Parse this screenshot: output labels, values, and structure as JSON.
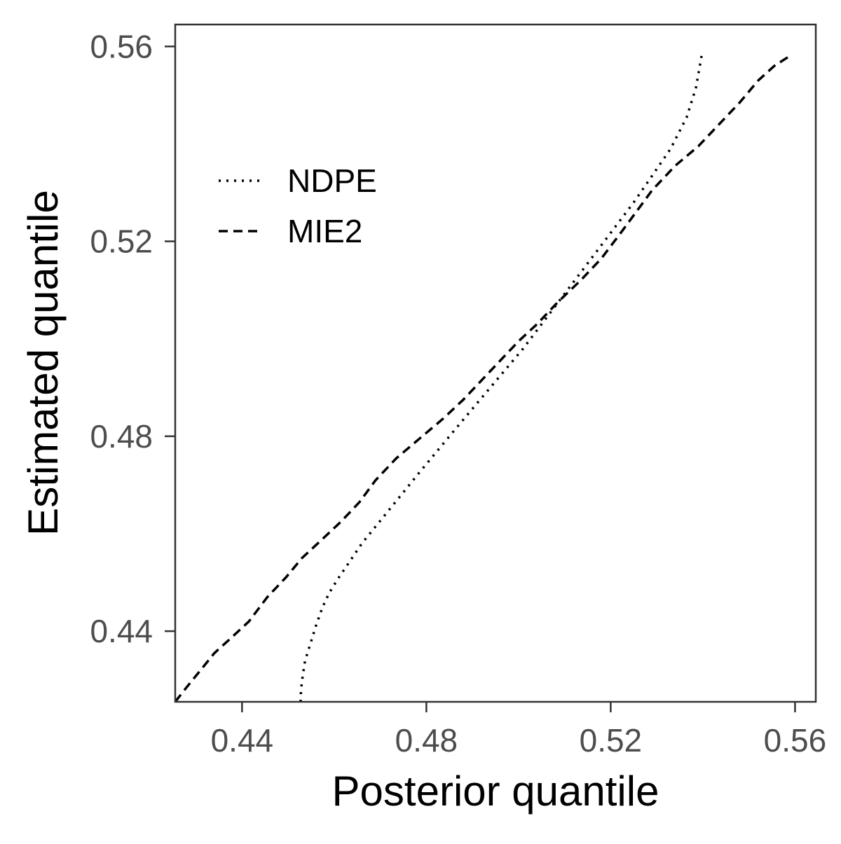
{
  "chart_data": {
    "type": "line",
    "title": "",
    "xlabel": "Posterior quantile",
    "ylabel": "Estimated quantile",
    "xlim": [
      0.4255,
      0.5645
    ],
    "ylim": [
      0.4255,
      0.5645
    ],
    "x_ticks": [
      0.44,
      0.48,
      0.52,
      0.56
    ],
    "x_tick_labels": [
      "0.44",
      "0.48",
      "0.52",
      "0.56"
    ],
    "y_ticks": [
      0.44,
      0.48,
      0.52,
      0.56
    ],
    "y_tick_labels": [
      "0.44",
      "0.48",
      "0.52",
      "0.56"
    ],
    "grid": false,
    "legend_position": "top-left inside",
    "series": [
      {
        "name": "NDPE",
        "style": "dotted",
        "color": "#000000",
        "points": [
          [
            0.4527,
            0.4255
          ],
          [
            0.4528,
            0.428
          ],
          [
            0.4532,
            0.431
          ],
          [
            0.4537,
            0.434
          ],
          [
            0.4547,
            0.437
          ],
          [
            0.456,
            0.441
          ],
          [
            0.4575,
            0.445
          ],
          [
            0.459,
            0.448
          ],
          [
            0.461,
            0.451
          ],
          [
            0.4635,
            0.4545
          ],
          [
            0.466,
            0.458
          ],
          [
            0.469,
            0.4615
          ],
          [
            0.472,
            0.465
          ],
          [
            0.475,
            0.4685
          ],
          [
            0.478,
            0.472
          ],
          [
            0.4815,
            0.476
          ],
          [
            0.485,
            0.48
          ],
          [
            0.489,
            0.4845
          ],
          [
            0.493,
            0.489
          ],
          [
            0.497,
            0.4935
          ],
          [
            0.501,
            0.498
          ],
          [
            0.505,
            0.503
          ],
          [
            0.509,
            0.508
          ],
          [
            0.513,
            0.513
          ],
          [
            0.517,
            0.518
          ],
          [
            0.521,
            0.523
          ],
          [
            0.525,
            0.528
          ],
          [
            0.529,
            0.5335
          ],
          [
            0.533,
            0.539
          ],
          [
            0.5365,
            0.5455
          ],
          [
            0.5385,
            0.5515
          ],
          [
            0.5398,
            0.5585
          ]
        ]
      },
      {
        "name": "MIE2",
        "style": "dashed",
        "color": "#000000",
        "points": [
          [
            0.4255,
            0.4255
          ],
          [
            0.428,
            0.4285
          ],
          [
            0.431,
            0.432
          ],
          [
            0.434,
            0.4355
          ],
          [
            0.4375,
            0.4385
          ],
          [
            0.4415,
            0.442
          ],
          [
            0.4455,
            0.447
          ],
          [
            0.4495,
            0.451
          ],
          [
            0.453,
            0.455
          ],
          [
            0.457,
            0.4585
          ],
          [
            0.4615,
            0.4625
          ],
          [
            0.4655,
            0.4665
          ],
          [
            0.469,
            0.471
          ],
          [
            0.4735,
            0.4755
          ],
          [
            0.4785,
            0.4795
          ],
          [
            0.4835,
            0.4835
          ],
          [
            0.488,
            0.4875
          ],
          [
            0.492,
            0.4915
          ],
          [
            0.496,
            0.4955
          ],
          [
            0.5,
            0.4995
          ],
          [
            0.504,
            0.503
          ],
          [
            0.5085,
            0.5075
          ],
          [
            0.5135,
            0.512
          ],
          [
            0.518,
            0.5165
          ],
          [
            0.522,
            0.5215
          ],
          [
            0.5255,
            0.526
          ],
          [
            0.529,
            0.5305
          ],
          [
            0.534,
            0.5355
          ],
          [
            0.539,
            0.5395
          ],
          [
            0.5435,
            0.544
          ],
          [
            0.548,
            0.5485
          ],
          [
            0.552,
            0.553
          ],
          [
            0.5555,
            0.556
          ],
          [
            0.5588,
            0.558
          ]
        ]
      }
    ]
  }
}
